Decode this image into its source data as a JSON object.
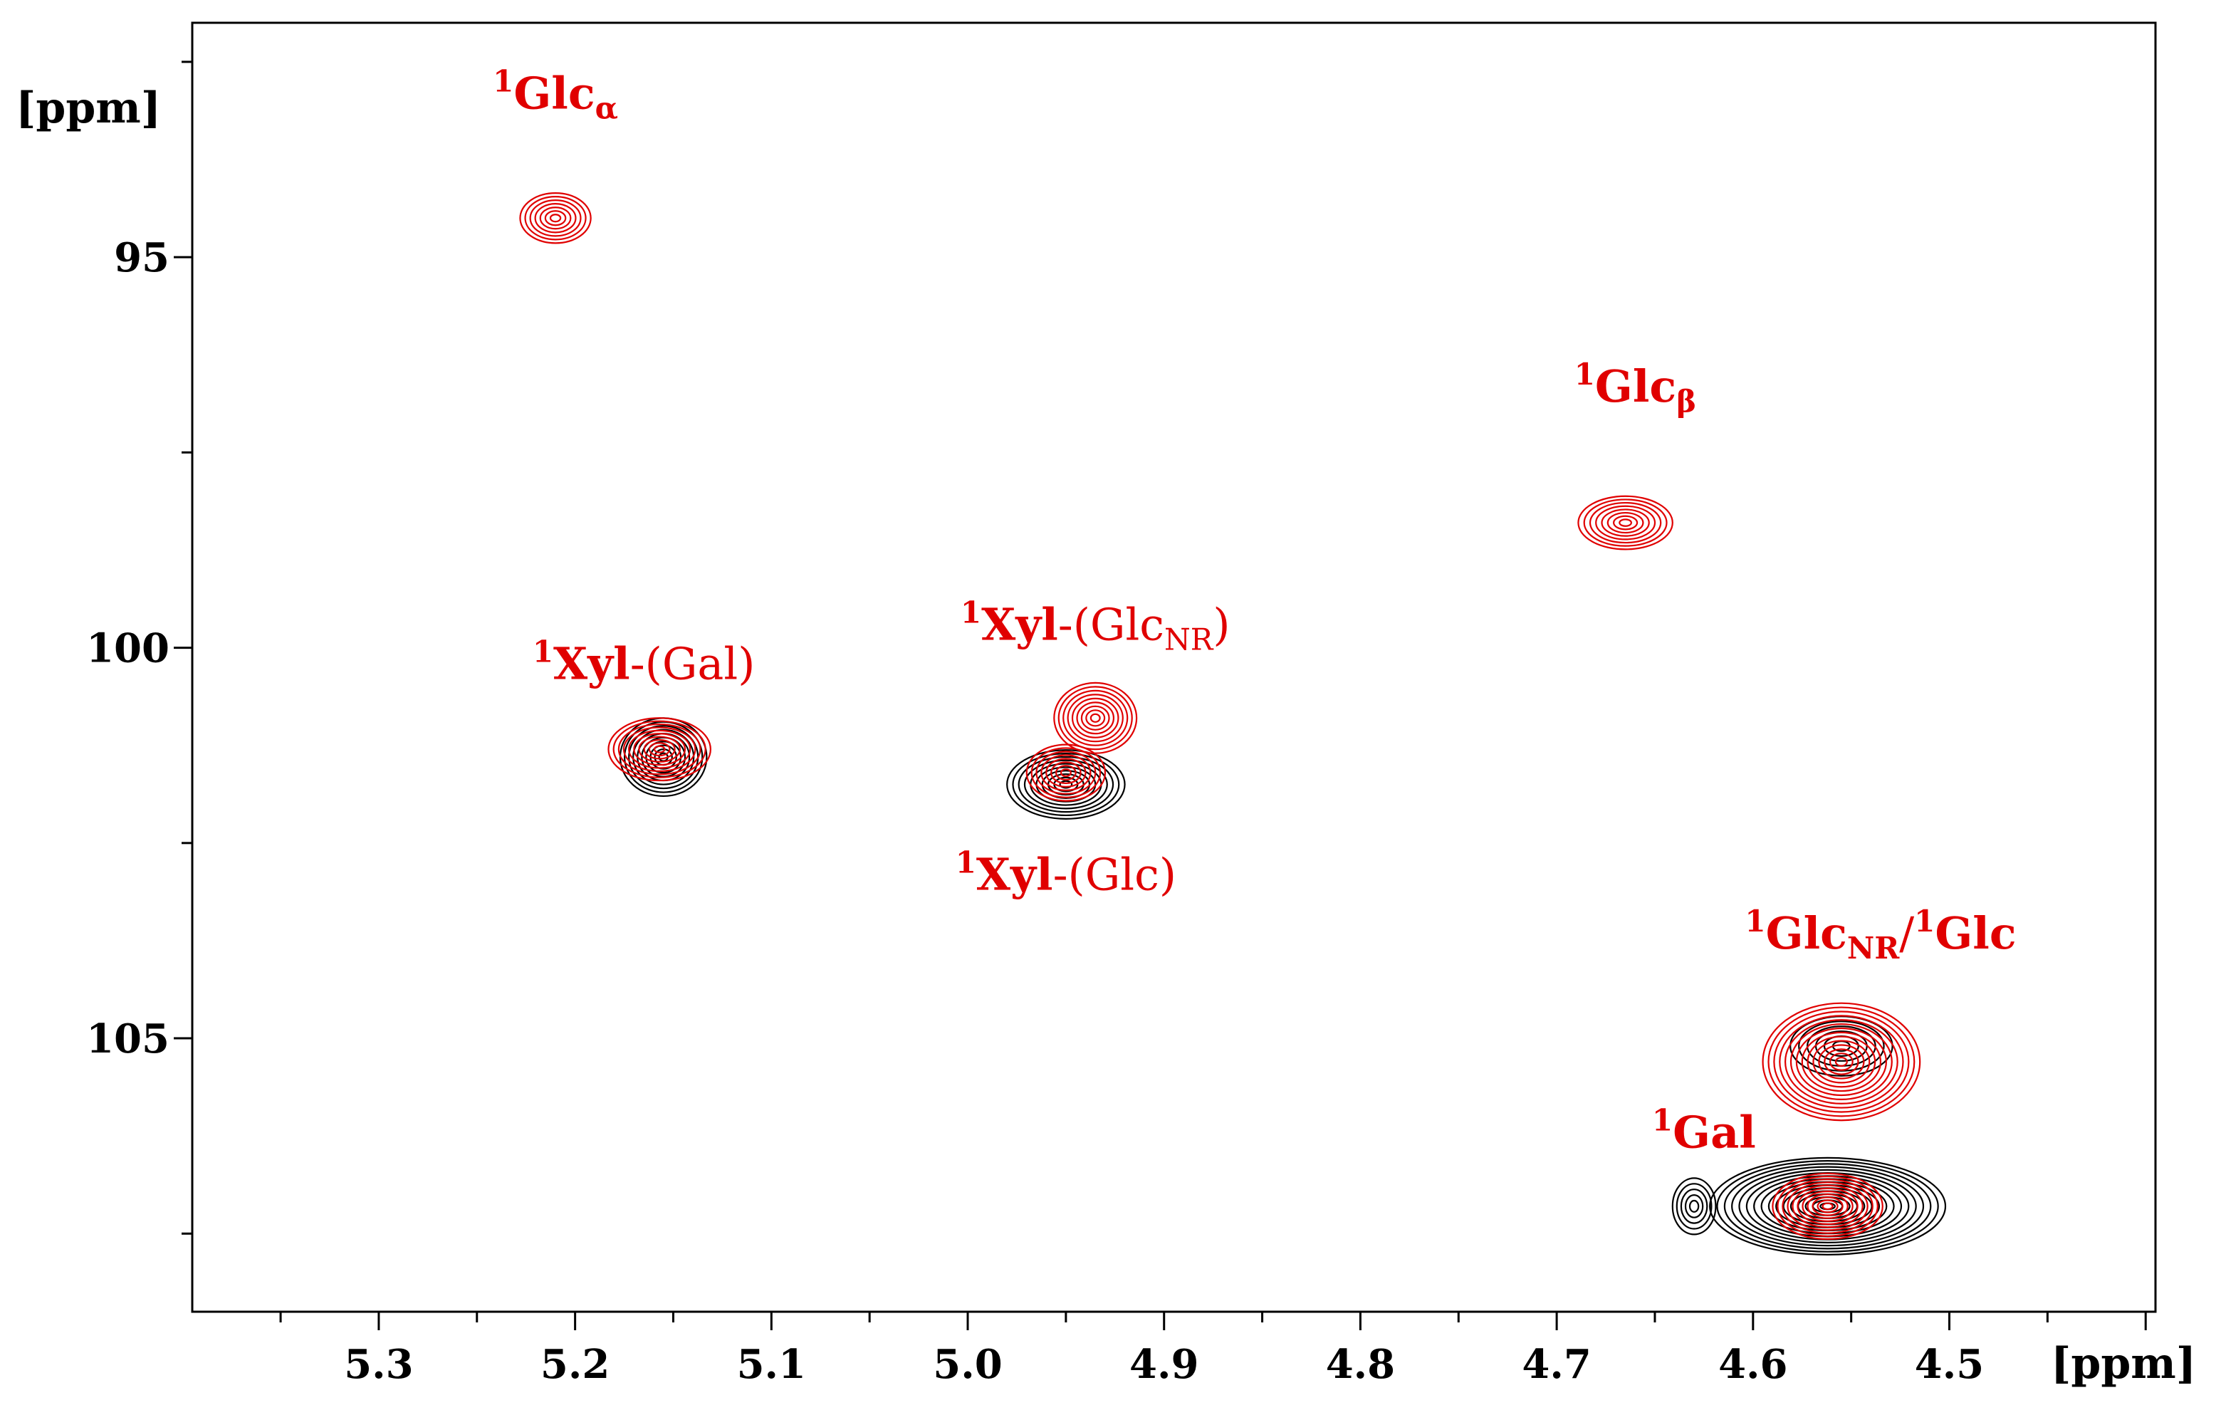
{
  "chart_data": {
    "type": "contour",
    "title": "",
    "xlabel": "[ppm]",
    "ylabel": "[ppm]",
    "xlim": [
      5.395,
      4.395
    ],
    "ylim": [
      92.0,
      108.5
    ],
    "x_ticks": [
      5.3,
      5.2,
      5.1,
      5.0,
      4.9,
      4.8,
      4.7,
      4.6,
      4.5
    ],
    "x_tick_labels": [
      "5.3",
      "5.2",
      "5.1",
      "5.0",
      "4.9",
      "4.8",
      "4.7",
      "4.6",
      "4.5"
    ],
    "y_ticks_major": [
      95,
      100,
      105
    ],
    "y_tick_labels": [
      "95",
      "100",
      "105"
    ],
    "y_ticks_minor": [
      92.5,
      97.5,
      102.5,
      107.5
    ],
    "colors": {
      "red_series": "#e00000",
      "black_series": "#000000"
    },
    "series": [
      {
        "name": "red",
        "color": "#e00000",
        "peaks": [
          {
            "id": "glc-alpha",
            "x": 5.21,
            "y": 94.5,
            "rx": 0.018,
            "ry": 0.32,
            "levels": 7
          },
          {
            "id": "glc-beta",
            "x": 4.665,
            "y": 98.4,
            "rx": 0.024,
            "ry": 0.34,
            "levels": 8
          },
          {
            "id": "xyl-gal",
            "x": 5.157,
            "y": 101.3,
            "rx": 0.026,
            "ry": 0.4,
            "levels": 10
          },
          {
            "id": "xyl-glcnr",
            "x": 4.935,
            "y": 100.9,
            "rx": 0.021,
            "ry": 0.45,
            "levels": 9
          },
          {
            "id": "xyl-glc",
            "x": 4.95,
            "y": 101.6,
            "rx": 0.02,
            "ry": 0.36,
            "levels": 8
          },
          {
            "id": "glcnr-glc",
            "x": 4.555,
            "y": 105.3,
            "rx": 0.04,
            "ry": 0.75,
            "levels": 14
          },
          {
            "id": "gal",
            "x": 4.562,
            "y": 107.15,
            "rx": 0.028,
            "ry": 0.42,
            "levels": 11
          }
        ]
      },
      {
        "name": "black",
        "color": "#000000",
        "peaks": [
          {
            "id": "xyl-gal",
            "x": 5.155,
            "y": 101.4,
            "rx": 0.022,
            "ry": 0.5,
            "levels": 10
          },
          {
            "id": "xyl-glc",
            "x": 4.95,
            "y": 101.75,
            "rx": 0.03,
            "ry": 0.44,
            "levels": 10
          },
          {
            "id": "glcnr-glc",
            "x": 4.555,
            "y": 105.1,
            "rx": 0.026,
            "ry": 0.38,
            "levels": 6
          },
          {
            "id": "gal",
            "x": 4.562,
            "y": 107.15,
            "rx": 0.06,
            "ry": 0.62,
            "levels": 16
          },
          {
            "id": "gal-side",
            "x": 4.63,
            "y": 107.15,
            "rx": 0.011,
            "ry": 0.36,
            "levels": 5
          }
        ]
      }
    ],
    "annotations": [
      {
        "id": "glc-alpha",
        "x": 5.21,
        "y": 93.1,
        "sup": "1",
        "main": "Glc",
        "sub": "α",
        "rest": ""
      },
      {
        "id": "glc-beta",
        "x": 4.66,
        "y": 96.85,
        "sup": "1",
        "main": "Glc",
        "sub": "β",
        "rest": ""
      },
      {
        "id": "xyl-gal",
        "x": 5.165,
        "y": 100.4,
        "sup": "1",
        "main": "Xyl",
        "sub": "",
        "rest": "-(Gal)"
      },
      {
        "id": "xyl-glcnr",
        "x": 4.935,
        "y": 99.9,
        "sup": "1",
        "main": "Xyl",
        "sub": "",
        "rest": "-(Glc",
        "rest_sub": "NR",
        "rest_end": ")"
      },
      {
        "id": "xyl-glc",
        "x": 4.95,
        "y": 103.1,
        "sup": "1",
        "main": "Xyl",
        "sub": "",
        "rest": "-(Glc)"
      },
      {
        "id": "glcnr-glc",
        "x": 4.535,
        "y": 103.85,
        "sup": "1",
        "main": "Glc",
        "sub": "NR",
        "rest": "/",
        "rest_sup": "1",
        "rest_end": "Glc",
        "rest_end_bold": true
      },
      {
        "id": "gal",
        "x": 4.625,
        "y": 106.4,
        "sup": "1",
        "main": "Gal",
        "sub": "",
        "rest": ""
      }
    ]
  }
}
